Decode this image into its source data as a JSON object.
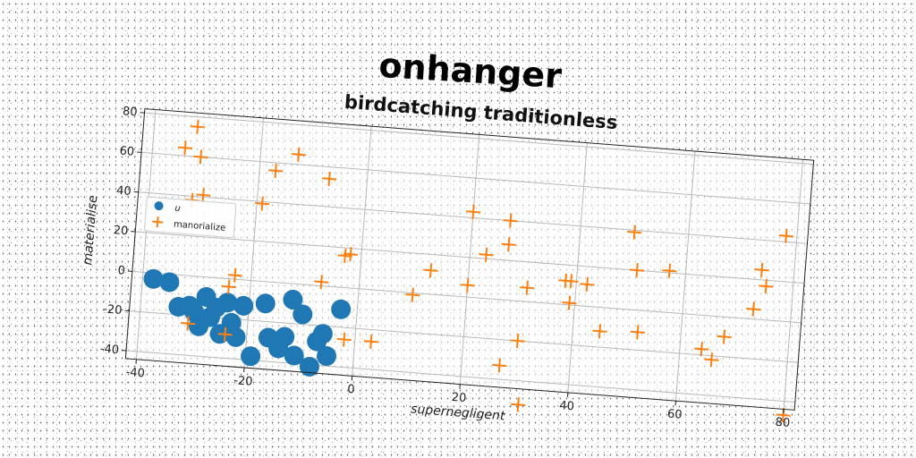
{
  "chart_data": {
    "type": "scatter",
    "title": "onhanger",
    "subtitle": "birdcatching traditionless",
    "xlabel": "supernegligent",
    "ylabel": "materialise",
    "xlim": [
      -42,
      82
    ],
    "ylim": [
      -44,
      82
    ],
    "xticks": [
      -40,
      -20,
      0,
      20,
      40,
      60,
      80
    ],
    "yticks": [
      -40,
      -20,
      0,
      20,
      40,
      60,
      80
    ],
    "xtick_labels": [
      "-40",
      "-20",
      "0",
      "20",
      "40",
      "60",
      "80"
    ],
    "ytick_labels": [
      "-40",
      "-20",
      "0",
      "20",
      "40",
      "60",
      "80"
    ],
    "grid": true,
    "legend_position": "center-left",
    "series": [
      {
        "name": "u",
        "marker": "circle",
        "color": "#1f77b4",
        "points": [
          [
            -38,
            -3
          ],
          [
            -35,
            -4
          ],
          [
            -33,
            -16
          ],
          [
            -31,
            -15
          ],
          [
            -30,
            -18
          ],
          [
            -29,
            -25
          ],
          [
            -28,
            -10
          ],
          [
            -27,
            -20
          ],
          [
            -26,
            -15
          ],
          [
            -25,
            -28
          ],
          [
            -24,
            -12
          ],
          [
            -23,
            -22
          ],
          [
            -22,
            -29
          ],
          [
            -21,
            -13
          ],
          [
            -19,
            -38
          ],
          [
            -17,
            -11
          ],
          [
            -16,
            -28
          ],
          [
            -14,
            -33
          ],
          [
            -13,
            -27
          ],
          [
            -12,
            -8
          ],
          [
            -11,
            -36
          ],
          [
            -10,
            -15
          ],
          [
            -8,
            -41
          ],
          [
            -7,
            -28
          ],
          [
            -6,
            -24
          ],
          [
            -5,
            -35
          ],
          [
            -3,
            -11
          ]
        ]
      },
      {
        "name": "manorialize",
        "marker": "plus",
        "color": "#ff7f0e",
        "points": [
          [
            -34,
            64
          ],
          [
            -32,
            75
          ],
          [
            -32,
            38
          ],
          [
            -31,
            60
          ],
          [
            -30,
            41
          ],
          [
            -31,
            -24
          ],
          [
            -24,
            -4
          ],
          [
            -23,
            2
          ],
          [
            -24,
            -28
          ],
          [
            -19,
            39
          ],
          [
            -17,
            56
          ],
          [
            -13,
            65
          ],
          [
            -7,
            54
          ],
          [
            -7,
            2
          ],
          [
            -3,
            16
          ],
          [
            -2,
            17
          ],
          [
            -2,
            -26
          ],
          [
            3,
            -26
          ],
          [
            10,
            -1
          ],
          [
            13,
            12
          ],
          [
            20,
            43
          ],
          [
            20,
            6
          ],
          [
            23,
            22
          ],
          [
            27,
            40
          ],
          [
            27,
            28
          ],
          [
            27,
            -33
          ],
          [
            30,
            -20
          ],
          [
            31,
            7
          ],
          [
            31,
            -52
          ],
          [
            38,
            12
          ],
          [
            39,
            12
          ],
          [
            39,
            1
          ],
          [
            42,
            11
          ],
          [
            45,
            -12
          ],
          [
            50,
            39
          ],
          [
            51,
            20
          ],
          [
            52,
            -11
          ],
          [
            57,
            21
          ],
          [
            64,
            -17
          ],
          [
            66,
            -22
          ],
          [
            68,
            -10
          ],
          [
            73,
            5
          ],
          [
            74,
            25
          ],
          [
            75,
            17
          ],
          [
            78,
            43
          ],
          [
            80,
            -47
          ]
        ]
      }
    ]
  }
}
